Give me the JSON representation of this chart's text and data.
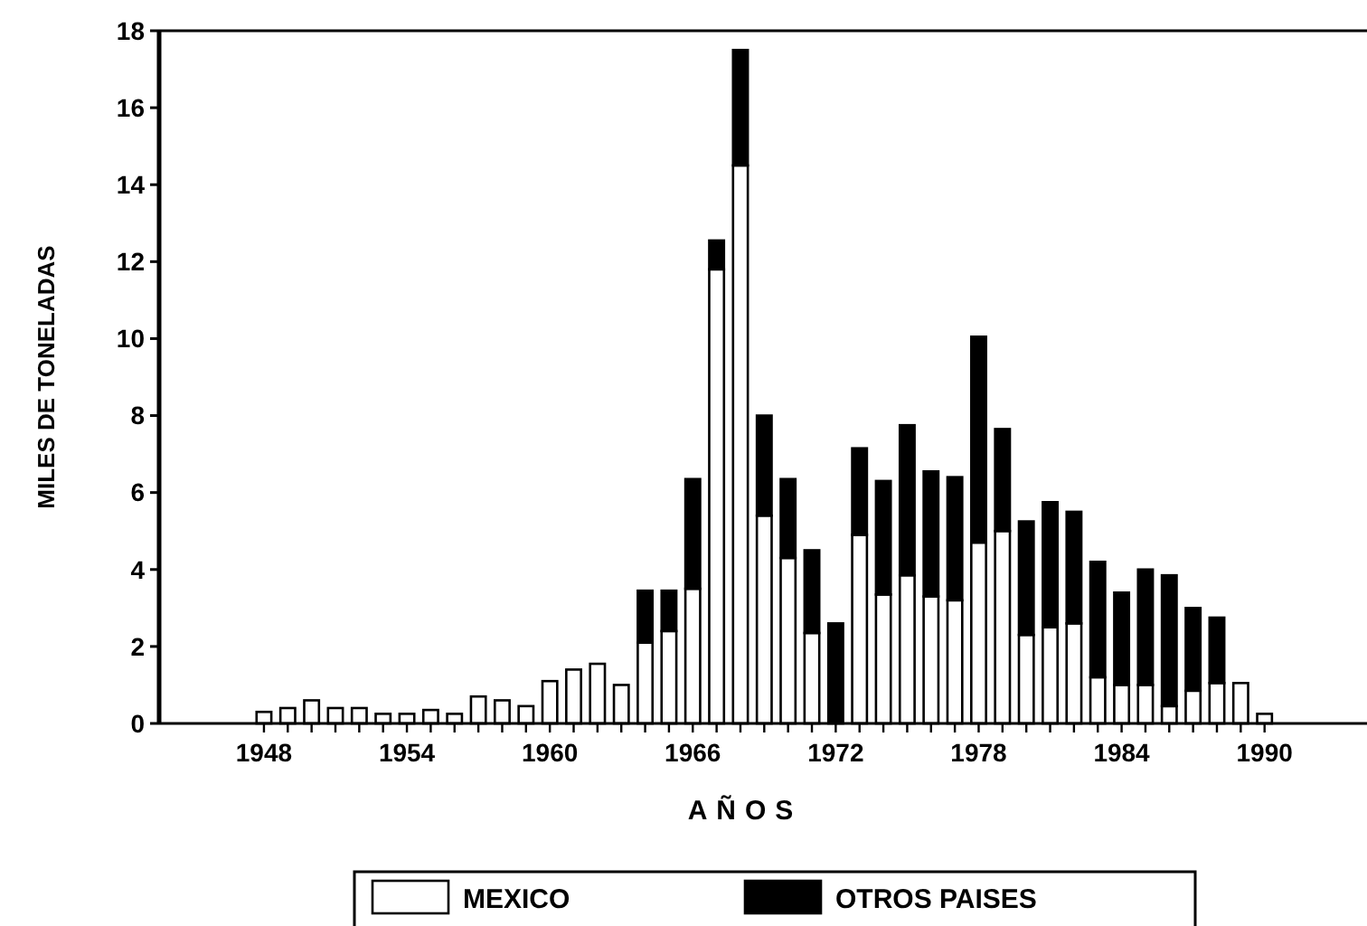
{
  "chart_data": {
    "type": "bar",
    "stacked": true,
    "xlabel": "AÑOS",
    "ylabel": "MILES DE TONELADAS",
    "x": [
      1948,
      1949,
      1950,
      1951,
      1952,
      1953,
      1954,
      1955,
      1956,
      1957,
      1958,
      1959,
      1960,
      1961,
      1962,
      1963,
      1964,
      1965,
      1966,
      1967,
      1968,
      1969,
      1970,
      1971,
      1972,
      1973,
      1974,
      1975,
      1976,
      1977,
      1978,
      1979,
      1980,
      1981,
      1982,
      1983,
      1984,
      1985,
      1986,
      1987,
      1988,
      1989,
      1990
    ],
    "series": [
      {
        "name": "MEXICO",
        "color": "#ffffff",
        "values": [
          0.3,
          0.4,
          0.6,
          0.4,
          0.4,
          0.25,
          0.25,
          0.35,
          0.25,
          0.7,
          0.6,
          0.45,
          1.1,
          1.4,
          1.55,
          1.0,
          2.1,
          2.4,
          3.5,
          11.8,
          14.5,
          5.4,
          4.3,
          2.35,
          0,
          4.9,
          3.35,
          3.85,
          3.3,
          3.2,
          4.7,
          5.0,
          2.3,
          2.5,
          2.6,
          1.2,
          1.0,
          1.0,
          0.45,
          0.85,
          1.05,
          1.05,
          0.25
        ]
      },
      {
        "name": "OTROS PAISES",
        "color": "#000000",
        "values": [
          0,
          0,
          0,
          0,
          0,
          0,
          0,
          0,
          0,
          0,
          0,
          0,
          0,
          0,
          0,
          0,
          1.35,
          1.05,
          2.85,
          0.75,
          3.0,
          2.6,
          2.05,
          2.15,
          2.6,
          2.25,
          2.95,
          3.9,
          3.25,
          3.2,
          5.35,
          2.65,
          2.95,
          3.25,
          2.9,
          3.0,
          2.4,
          3.0,
          3.4,
          2.15,
          1.7,
          0,
          0
        ]
      }
    ],
    "xlim": [
      1943.6,
      1994.3
    ],
    "xticks": [
      1948,
      {
        "value": 1949,
        "label": null
      },
      {
        "value": 1950,
        "label": null
      },
      {
        "value": 1951,
        "label": null
      },
      {
        "value": 1952,
        "label": null
      },
      {
        "value": 1953,
        "label": null
      },
      1954,
      {
        "value": 1955,
        "label": null
      },
      {
        "value": 1956,
        "label": null
      },
      {
        "value": 1957,
        "label": null
      },
      {
        "value": 1958,
        "label": null
      },
      {
        "value": 1959,
        "label": null
      },
      1960,
      {
        "value": 1961,
        "label": null
      },
      {
        "value": 1962,
        "label": null
      },
      {
        "value": 1963,
        "label": null
      },
      {
        "value": 1964,
        "label": null
      },
      {
        "value": 1965,
        "label": null
      },
      1966,
      {
        "value": 1967,
        "label": null
      },
      {
        "value": 1968,
        "label": null
      },
      {
        "value": 1969,
        "label": null
      },
      {
        "value": 1970,
        "label": null
      },
      {
        "value": 1971,
        "label": null
      },
      1972,
      {
        "value": 1973,
        "label": null
      },
      {
        "value": 1974,
        "label": null
      },
      {
        "value": 1975,
        "label": null
      },
      {
        "value": 1976,
        "label": null
      },
      {
        "value": 1977,
        "label": null
      },
      1978,
      {
        "value": 1979,
        "label": null
      },
      {
        "value": 1980,
        "label": null
      },
      {
        "value": 1981,
        "label": null
      },
      {
        "value": 1982,
        "label": null
      },
      {
        "value": 1983,
        "label": null
      },
      1984,
      {
        "value": 1985,
        "label": null
      },
      {
        "value": 1986,
        "label": null
      },
      {
        "value": 1987,
        "label": null
      },
      {
        "value": 1988,
        "label": null
      },
      {
        "value": 1989,
        "label": null
      },
      1990
    ],
    "ylim": [
      0,
      18
    ],
    "yticks": [
      0,
      2,
      4,
      6,
      8,
      10,
      12,
      14,
      16,
      18
    ],
    "grid": false,
    "legend": "bottom"
  }
}
